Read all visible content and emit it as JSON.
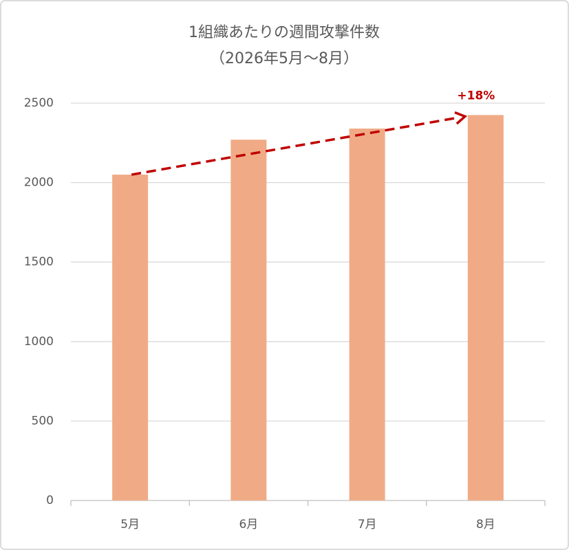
{
  "chart_data": {
    "type": "bar",
    "title": "1組織あたりの週間攻撃件数",
    "subtitle": "（2026年5月～8月）",
    "categories": [
      "5月",
      "6月",
      "7月",
      "8月"
    ],
    "values": [
      2050,
      2270,
      2340,
      2425
    ],
    "color": "#f0ab86",
    "annotation": "+18%",
    "annotation_color": "#c00000",
    "ylim": [
      0,
      2500
    ],
    "yticks": [
      0,
      500,
      1000,
      1500,
      2000,
      2500
    ],
    "grid": true
  }
}
